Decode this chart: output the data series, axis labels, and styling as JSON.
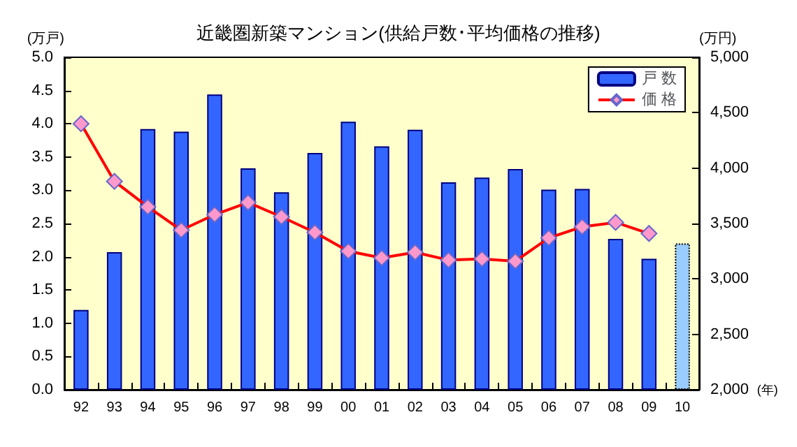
{
  "chart_data": {
    "type": "bar",
    "title": "近畿圏新築マンション(供給戸数･平均価格の推移)",
    "xlabel": "(年)",
    "ylabel": "(万戸)",
    "y2label": "(万円)",
    "categories": [
      "92",
      "93",
      "94",
      "95",
      "96",
      "97",
      "98",
      "99",
      "00",
      "01",
      "02",
      "03",
      "04",
      "05",
      "06",
      "07",
      "08",
      "09",
      "10"
    ],
    "series": [
      {
        "name": "戸 数",
        "color": "#3366ff",
        "colors": [
          "#3366ff",
          "#3366ff",
          "#3366ff",
          "#3366ff",
          "#3366ff",
          "#3366ff",
          "#3366ff",
          "#3366ff",
          "#3366ff",
          "#3366ff",
          "#3366ff",
          "#3366ff",
          "#3366ff",
          "#3366ff",
          "#3366ff",
          "#3366ff",
          "#3366ff",
          "#3366ff",
          "#99ccff"
        ],
        "values": [
          1.2,
          2.07,
          3.92,
          3.88,
          4.44,
          3.33,
          2.97,
          3.56,
          4.03,
          3.66,
          3.91,
          3.12,
          3.19,
          3.32,
          3.01,
          3.02,
          2.27,
          1.97,
          2.2
        ]
      },
      {
        "name": "価 格",
        "type": "line",
        "axis": "y2",
        "color": "#ff0000",
        "marker": "diamond",
        "values": [
          4400,
          3880,
          3650,
          3440,
          3580,
          3690,
          3560,
          3420,
          3250,
          3190,
          3240,
          3170,
          3180,
          3160,
          3370,
          3470,
          3510,
          3410,
          null
        ]
      }
    ],
    "ylim": [
      0,
      5
    ],
    "yticks": [
      {
        "value": 0,
        "label": "0.0"
      },
      0.5,
      {
        "value": 1,
        "label": "1.0"
      },
      1.5,
      {
        "value": 2,
        "label": "2.0"
      },
      2.5,
      {
        "value": 3,
        "label": "3.0"
      },
      3.5,
      {
        "value": 4,
        "label": "4.0"
      },
      4.5,
      {
        "value": 5,
        "label": "5.0"
      }
    ],
    "y2lim": [
      2000,
      5000
    ],
    "y2ticks": [
      {
        "value": 2000,
        "label": "2,000"
      },
      {
        "value": 2500,
        "label": "2,500"
      },
      {
        "value": 3000,
        "label": "3,000"
      },
      {
        "value": 3500,
        "label": "3,500"
      },
      {
        "value": 4000,
        "label": "4,000"
      },
      {
        "value": 4500,
        "label": "4,500"
      },
      {
        "value": 5000,
        "label": "5,000"
      }
    ],
    "grid": false,
    "legend": "top right"
  }
}
